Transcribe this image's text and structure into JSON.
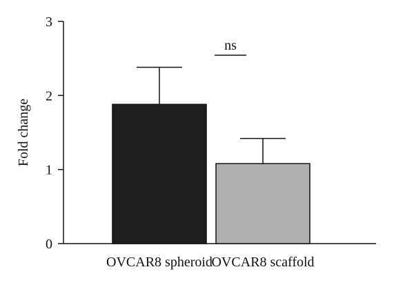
{
  "chart_data": {
    "type": "bar",
    "categories": [
      "OVCAR8 spheroid",
      "OVCAR8 scaffold"
    ],
    "values": [
      1.88,
      1.08
    ],
    "error_upper": [
      2.38,
      1.42
    ],
    "bar_colors": [
      "#1e1e1e",
      "#b0b0b0"
    ],
    "ylabel": "Fold change",
    "xlabel": "",
    "ylim": [
      0,
      3
    ],
    "yticks": [
      "0",
      "1",
      "2",
      "3"
    ],
    "grid": false,
    "annotations": [
      {
        "text": "ns"
      }
    ]
  }
}
